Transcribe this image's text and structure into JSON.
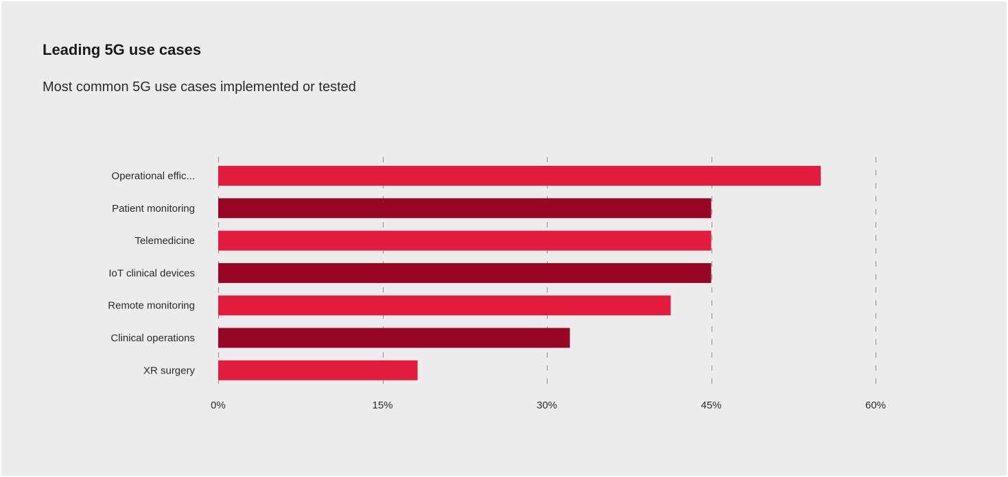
{
  "title": "Leading 5G use cases",
  "subtitle": "Most common 5G use cases implemented or tested",
  "chart_data": {
    "type": "bar",
    "orientation": "horizontal",
    "title": "Leading 5G use cases",
    "subtitle": "Most common 5G use cases implemented or tested",
    "categories": [
      "Operational effic...",
      "Patient monitoring",
      "Telemedicine",
      "IoT clinical devices",
      "Remote monitoring",
      "Clinical operations",
      "XR surgery"
    ],
    "values": [
      55,
      45,
      45,
      45,
      41.3,
      32.1,
      18.2
    ],
    "unit": "%",
    "xlim": [
      0,
      60
    ],
    "xticks": [
      0,
      15,
      30,
      45,
      60
    ],
    "xtick_labels": [
      "0%",
      "15%",
      "30%",
      "45%",
      "60%"
    ],
    "xlabel": "",
    "ylabel": "",
    "grid": "vertical dashed",
    "legend": "none",
    "colors": [
      "#e31c3d",
      "#990625",
      "#e31c3d",
      "#990625",
      "#e31c3d",
      "#990625",
      "#e31c3d"
    ],
    "background": "#ececec"
  }
}
